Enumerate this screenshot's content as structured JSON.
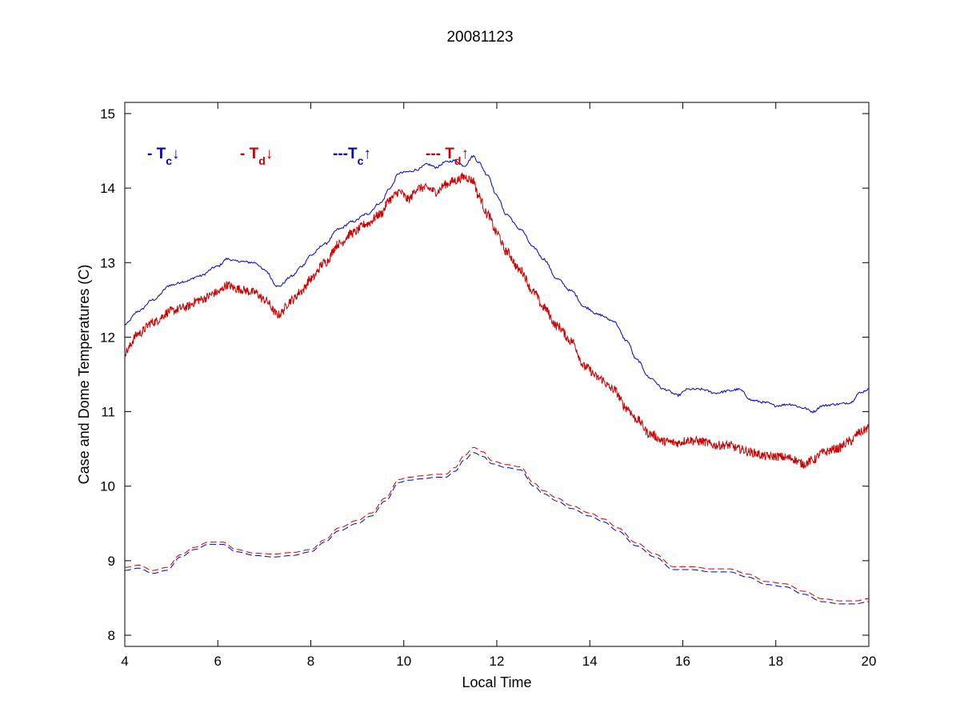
{
  "chart_data": {
    "type": "line",
    "title": "20081123",
    "xlabel": "Local Time",
    "ylabel": "Case and Dome Temperatures (C)",
    "xlim": [
      4,
      20
    ],
    "ylim": [
      7.85,
      15.15
    ],
    "xticks": [
      4,
      6,
      8,
      10,
      12,
      14,
      16,
      18,
      20
    ],
    "yticks": [
      8,
      9,
      10,
      11,
      12,
      13,
      14,
      15
    ],
    "grid": false,
    "legend_placement": "top-left",
    "series": [
      {
        "name": "- T_c↓",
        "legend": {
          "prefix": "- T",
          "sub": "c",
          "arrow": "↓"
        },
        "color": "#0000cc",
        "style": "solid",
        "noise": 0.015,
        "x": [
          4.0,
          4.3,
          4.6,
          5.0,
          5.3,
          5.6,
          6.0,
          6.2,
          6.4,
          6.8,
          7.0,
          7.3,
          7.6,
          7.8,
          8.0,
          8.3,
          8.6,
          8.9,
          9.2,
          9.5,
          9.7,
          9.9,
          10.1,
          10.3,
          10.5,
          10.7,
          10.9,
          11.1,
          11.3,
          11.5,
          11.6,
          11.8,
          12.0,
          12.2,
          12.5,
          12.8,
          13.0,
          13.3,
          13.6,
          13.9,
          14.2,
          14.5,
          14.8,
          15.0,
          15.3,
          15.6,
          15.9,
          16.1,
          16.4,
          16.7,
          17.0,
          17.2,
          17.5,
          17.8,
          18.0,
          18.3,
          18.6,
          18.8,
          19.0,
          19.3,
          19.6,
          19.8,
          20.0
        ],
        "y": [
          12.17,
          12.35,
          12.5,
          12.7,
          12.75,
          12.82,
          12.95,
          13.05,
          13.02,
          13.0,
          12.9,
          12.68,
          12.82,
          12.95,
          13.1,
          13.25,
          13.45,
          13.55,
          13.65,
          13.8,
          14.0,
          14.2,
          14.22,
          14.25,
          14.32,
          14.28,
          14.35,
          14.37,
          14.3,
          14.43,
          14.35,
          14.18,
          13.9,
          13.65,
          13.45,
          13.2,
          13.05,
          12.78,
          12.62,
          12.4,
          12.3,
          12.22,
          11.95,
          11.7,
          11.45,
          11.3,
          11.22,
          11.3,
          11.3,
          11.25,
          11.28,
          11.3,
          11.15,
          11.12,
          11.08,
          11.1,
          11.05,
          11.0,
          11.08,
          11.1,
          11.12,
          11.25,
          11.3
        ]
      },
      {
        "name": "- T_d↓",
        "legend": {
          "prefix": "- T",
          "sub": "d",
          "arrow": "↓"
        },
        "color": "#cc0000",
        "style": "solid",
        "noise": 0.06,
        "x": [
          4.0,
          4.3,
          4.6,
          5.0,
          5.3,
          5.6,
          6.0,
          6.2,
          6.4,
          6.8,
          7.0,
          7.3,
          7.6,
          7.8,
          8.0,
          8.3,
          8.6,
          8.9,
          9.2,
          9.5,
          9.7,
          9.9,
          10.1,
          10.3,
          10.5,
          10.7,
          10.9,
          11.1,
          11.3,
          11.5,
          11.6,
          11.8,
          12.0,
          12.2,
          12.5,
          12.8,
          13.0,
          13.3,
          13.6,
          13.9,
          14.2,
          14.5,
          14.8,
          15.0,
          15.3,
          15.6,
          15.9,
          16.1,
          16.4,
          16.7,
          17.0,
          17.2,
          17.5,
          17.8,
          18.0,
          18.3,
          18.6,
          18.8,
          19.0,
          19.3,
          19.6,
          19.8,
          20.0
        ],
        "y": [
          11.8,
          12.05,
          12.2,
          12.35,
          12.4,
          12.5,
          12.6,
          12.7,
          12.65,
          12.6,
          12.5,
          12.3,
          12.5,
          12.62,
          12.78,
          13.0,
          13.25,
          13.4,
          13.52,
          13.65,
          13.85,
          13.95,
          13.85,
          14.0,
          14.0,
          13.95,
          14.05,
          14.1,
          14.15,
          14.1,
          13.9,
          13.65,
          13.4,
          13.15,
          12.9,
          12.6,
          12.4,
          12.15,
          11.95,
          11.6,
          11.45,
          11.3,
          11.05,
          10.9,
          10.7,
          10.6,
          10.58,
          10.62,
          10.6,
          10.55,
          10.55,
          10.5,
          10.45,
          10.4,
          10.4,
          10.38,
          10.3,
          10.35,
          10.45,
          10.5,
          10.6,
          10.72,
          10.78
        ]
      },
      {
        "name": "---T_c↑",
        "legend": {
          "prefix": "---T",
          "sub": "c",
          "arrow": "↑"
        },
        "color": "#0000cc",
        "style": "dashed",
        "noise": 0.0,
        "x": [
          4.0,
          4.3,
          4.6,
          4.9,
          5.2,
          5.5,
          5.8,
          6.1,
          6.4,
          6.8,
          7.2,
          7.6,
          8.0,
          8.3,
          8.6,
          9.0,
          9.3,
          9.6,
          9.9,
          10.1,
          10.4,
          10.7,
          10.9,
          11.1,
          11.3,
          11.5,
          11.7,
          11.9,
          12.2,
          12.5,
          12.8,
          13.0,
          13.3,
          13.6,
          14.0,
          14.3,
          14.6,
          15.0,
          15.4,
          15.8,
          16.2,
          16.6,
          17.0,
          17.4,
          17.8,
          18.2,
          18.6,
          19.0,
          19.4,
          19.7,
          20.0
        ],
        "y": [
          8.87,
          8.9,
          8.83,
          8.87,
          9.05,
          9.15,
          9.22,
          9.22,
          9.12,
          9.07,
          9.05,
          9.07,
          9.12,
          9.25,
          9.4,
          9.5,
          9.6,
          9.8,
          10.05,
          10.08,
          10.1,
          10.12,
          10.12,
          10.2,
          10.35,
          10.45,
          10.4,
          10.3,
          10.25,
          10.22,
          10.0,
          9.9,
          9.8,
          9.7,
          9.6,
          9.52,
          9.4,
          9.2,
          9.05,
          8.88,
          8.88,
          8.85,
          8.85,
          8.78,
          8.68,
          8.65,
          8.55,
          8.45,
          8.42,
          8.42,
          8.45
        ]
      },
      {
        "name": "--- T_d↑",
        "legend": {
          "prefix": "--- T",
          "sub": "d",
          "arrow": "↑"
        },
        "color": "#cc0000",
        "style": "dashed",
        "noise": 0.0,
        "x": [
          4.0,
          4.3,
          4.6,
          4.9,
          5.2,
          5.5,
          5.8,
          6.1,
          6.4,
          6.8,
          7.2,
          7.6,
          8.0,
          8.3,
          8.6,
          9.0,
          9.3,
          9.6,
          9.9,
          10.1,
          10.4,
          10.7,
          10.9,
          11.1,
          11.3,
          11.5,
          11.7,
          11.9,
          12.2,
          12.5,
          12.8,
          13.0,
          13.3,
          13.6,
          14.0,
          14.3,
          14.6,
          15.0,
          15.4,
          15.8,
          16.2,
          16.6,
          17.0,
          17.4,
          17.8,
          18.2,
          18.6,
          19.0,
          19.4,
          19.7,
          20.0
        ],
        "y": [
          8.91,
          8.94,
          8.87,
          8.91,
          9.08,
          9.18,
          9.25,
          9.25,
          9.15,
          9.1,
          9.09,
          9.11,
          9.15,
          9.28,
          9.44,
          9.54,
          9.64,
          9.84,
          10.09,
          10.12,
          10.14,
          10.16,
          10.16,
          10.25,
          10.41,
          10.52,
          10.46,
          10.34,
          10.29,
          10.26,
          10.04,
          9.94,
          9.84,
          9.74,
          9.64,
          9.56,
          9.44,
          9.24,
          9.09,
          8.92,
          8.92,
          8.89,
          8.89,
          8.82,
          8.72,
          8.69,
          8.59,
          8.49,
          8.46,
          8.46,
          8.49
        ]
      }
    ]
  }
}
